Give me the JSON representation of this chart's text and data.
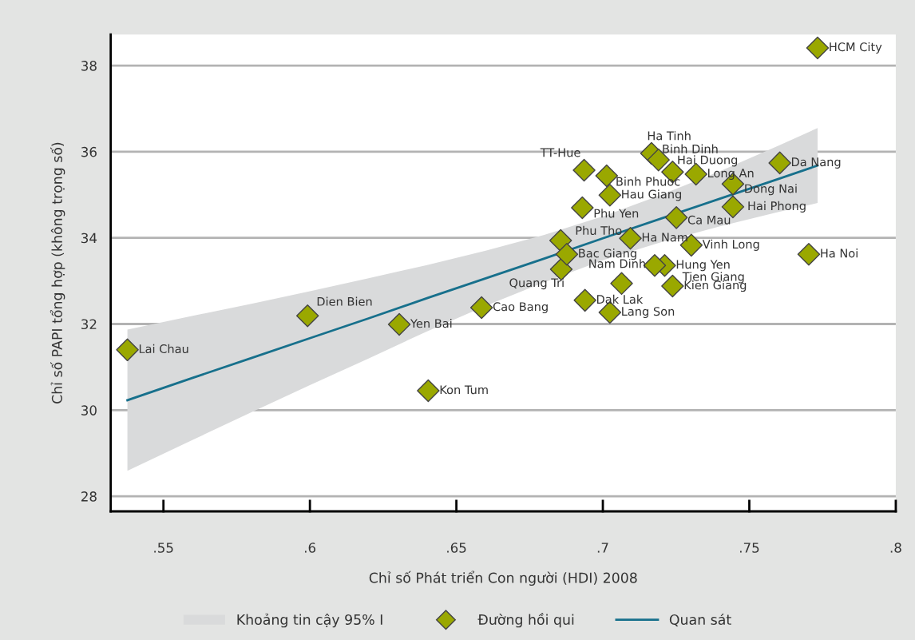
{
  "chart_data": {
    "type": "scatter",
    "xlabel": "Chỉ số Phát triển Con người (HDI) 2008",
    "ylabel": "Chỉ số PAPI tổng hợp (không trọng số)",
    "xlim": [
      0.532,
      0.8
    ],
    "ylim": [
      27.65,
      38.72
    ],
    "xticks": [
      {
        "value": 0.55,
        "label": ".55"
      },
      {
        "value": 0.6,
        "label": ".6"
      },
      {
        "value": 0.65,
        "label": ".65"
      },
      {
        "value": 0.7,
        "label": ".7"
      },
      {
        "value": 0.75,
        "label": ".75"
      },
      {
        "value": 0.8,
        "label": ".8"
      }
    ],
    "yticks": [
      28,
      30,
      32,
      34,
      36,
      38
    ],
    "grid": "y",
    "legend": "bottom",
    "series": [
      {
        "type": "area",
        "name": "Khoảng tin cậy 95% I",
        "color": "#d9dadb"
      },
      {
        "marker": "diamond",
        "name": "Đường hồi qui",
        "color": "#9aa800",
        "x": [
          0.5377,
          0.5992,
          0.6305,
          0.6404,
          0.6586,
          0.6858,
          0.6856,
          0.6877,
          0.6936,
          0.693,
          0.6939,
          0.7013,
          0.7024,
          0.7024,
          0.7064,
          0.7094,
          0.7166,
          0.719,
          0.7238,
          0.7318,
          0.7444,
          0.7251,
          0.7444,
          0.7302,
          0.7211,
          0.7177,
          0.7238,
          0.7703,
          0.7604,
          0.7733
        ],
        "values": [
          31.4,
          32.19,
          31.99,
          30.45,
          32.38,
          33.27,
          33.94,
          33.62,
          35.57,
          34.7,
          32.55,
          35.44,
          34.99,
          32.27,
          32.94,
          33.99,
          35.96,
          35.81,
          35.53,
          35.48,
          35.25,
          34.47,
          34.72,
          33.83,
          33.36,
          33.36,
          32.88,
          33.62,
          35.74,
          38.41
        ]
      },
      {
        "type": "line",
        "name": "Quan sát",
        "color": "#17708c",
        "x": [
          0.5377,
          0.56,
          0.58,
          0.6,
          0.62,
          0.64,
          0.66,
          0.68,
          0.7,
          0.72,
          0.74,
          0.76,
          0.7733
        ],
        "values": [
          30.23,
          30.75,
          31.21,
          31.67,
          32.13,
          32.6,
          33.06,
          33.52,
          33.99,
          34.45,
          34.91,
          35.37,
          35.68
        ],
        "lower": [
          28.59,
          29.31,
          29.95,
          30.58,
          31.2,
          31.83,
          32.42,
          32.97,
          33.48,
          33.9,
          34.27,
          34.6,
          34.81
        ],
        "upper": [
          31.87,
          32.19,
          32.47,
          32.76,
          33.06,
          33.37,
          33.7,
          34.07,
          34.5,
          35.0,
          35.55,
          36.14,
          36.55
        ]
      }
    ],
    "annotations": [
      {
        "text": "Lai Chau",
        "x": 0.5377,
        "y": 31.4
      },
      {
        "text": "Dien Bien",
        "x": 0.5992,
        "y": 32.19
      },
      {
        "text": "Yen Bai",
        "x": 0.6305,
        "y": 31.99
      },
      {
        "text": "Kon Tum",
        "x": 0.6404,
        "y": 30.45
      },
      {
        "text": "Cao Bang",
        "x": 0.6586,
        "y": 32.38
      },
      {
        "text": "Quang Tri",
        "x": 0.6858,
        "y": 33.27
      },
      {
        "text": "Phu Tho",
        "x": 0.6856,
        "y": 33.94
      },
      {
        "text": "Bac Giang",
        "x": 0.6877,
        "y": 33.62
      },
      {
        "text": "TT-Hue",
        "x": 0.6936,
        "y": 35.57
      },
      {
        "text": "Phu Yen",
        "x": 0.693,
        "y": 34.7
      },
      {
        "text": "Dak Lak",
        "x": 0.6939,
        "y": 32.55
      },
      {
        "text": "Binh Phuoc",
        "x": 0.7013,
        "y": 35.44
      },
      {
        "text": "Hau Giang",
        "x": 0.7024,
        "y": 34.99
      },
      {
        "text": "Lang Son",
        "x": 0.7024,
        "y": 32.27
      },
      {
        "text": "Nam Dinh",
        "x": 0.7064,
        "y": 32.94
      },
      {
        "text": "Ha Nam",
        "x": 0.7094,
        "y": 33.99
      },
      {
        "text": "Ha Tinh",
        "x": 0.7166,
        "y": 35.96
      },
      {
        "text": "Binh Dinh",
        "x": 0.719,
        "y": 35.81
      },
      {
        "text": "Hai Duong",
        "x": 0.7238,
        "y": 35.53
      },
      {
        "text": "Long An",
        "x": 0.7318,
        "y": 35.48
      },
      {
        "text": "Dong Nai",
        "x": 0.7444,
        "y": 35.25
      },
      {
        "text": "Ca Mau",
        "x": 0.7251,
        "y": 34.47
      },
      {
        "text": "Hai Phong",
        "x": 0.7444,
        "y": 34.72
      },
      {
        "text": "Vinh Long",
        "x": 0.7302,
        "y": 33.83
      },
      {
        "text": "Hung Yen",
        "x": 0.7211,
        "y": 33.36
      },
      {
        "text": "Tien Giang",
        "x": 0.7177,
        "y": 33.36
      },
      {
        "text": "Kien Giang",
        "x": 0.7238,
        "y": 32.88
      },
      {
        "text": "Ha Noi",
        "x": 0.7703,
        "y": 33.62
      },
      {
        "text": "Da Nang",
        "x": 0.7604,
        "y": 35.74
      },
      {
        "text": "HCM City",
        "x": 0.7733,
        "y": 38.41
      }
    ]
  }
}
